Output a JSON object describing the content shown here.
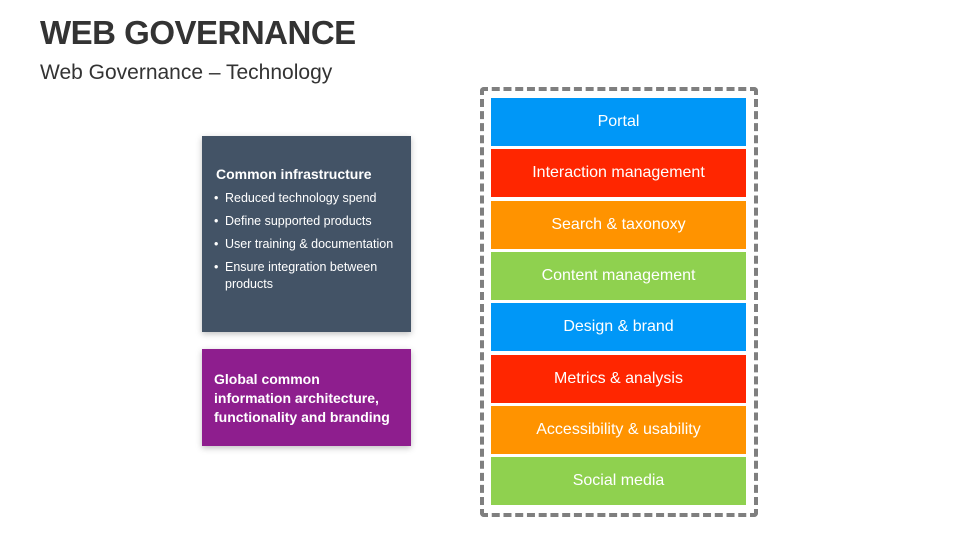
{
  "header": {
    "title": "WEB GOVERNANCE",
    "subtitle": "Web Governance – Technology"
  },
  "infrastructure": {
    "heading": "Common infrastructure",
    "bullets": [
      "Reduced technology spend",
      "Define supported products",
      "User training & documentation",
      "Ensure integration between products"
    ],
    "color": "#435366"
  },
  "global": {
    "text": "Global common information architecture, functionality and branding",
    "color": "#8e1e8e"
  },
  "layers": [
    {
      "label": "Portal",
      "color": "#0097f7"
    },
    {
      "label": "Interaction management",
      "color": "#ff2600"
    },
    {
      "label": "Search & taxonoxy",
      "color": "#ff9300"
    },
    {
      "label": "Content management",
      "color": "#8fd14f"
    },
    {
      "label": "Design & brand",
      "color": "#0097f7"
    },
    {
      "label": "Metrics & analysis",
      "color": "#ff2600"
    },
    {
      "label": "Accessibility & usability",
      "color": "#ff9300"
    },
    {
      "label": "Social media",
      "color": "#8fd14f"
    }
  ]
}
